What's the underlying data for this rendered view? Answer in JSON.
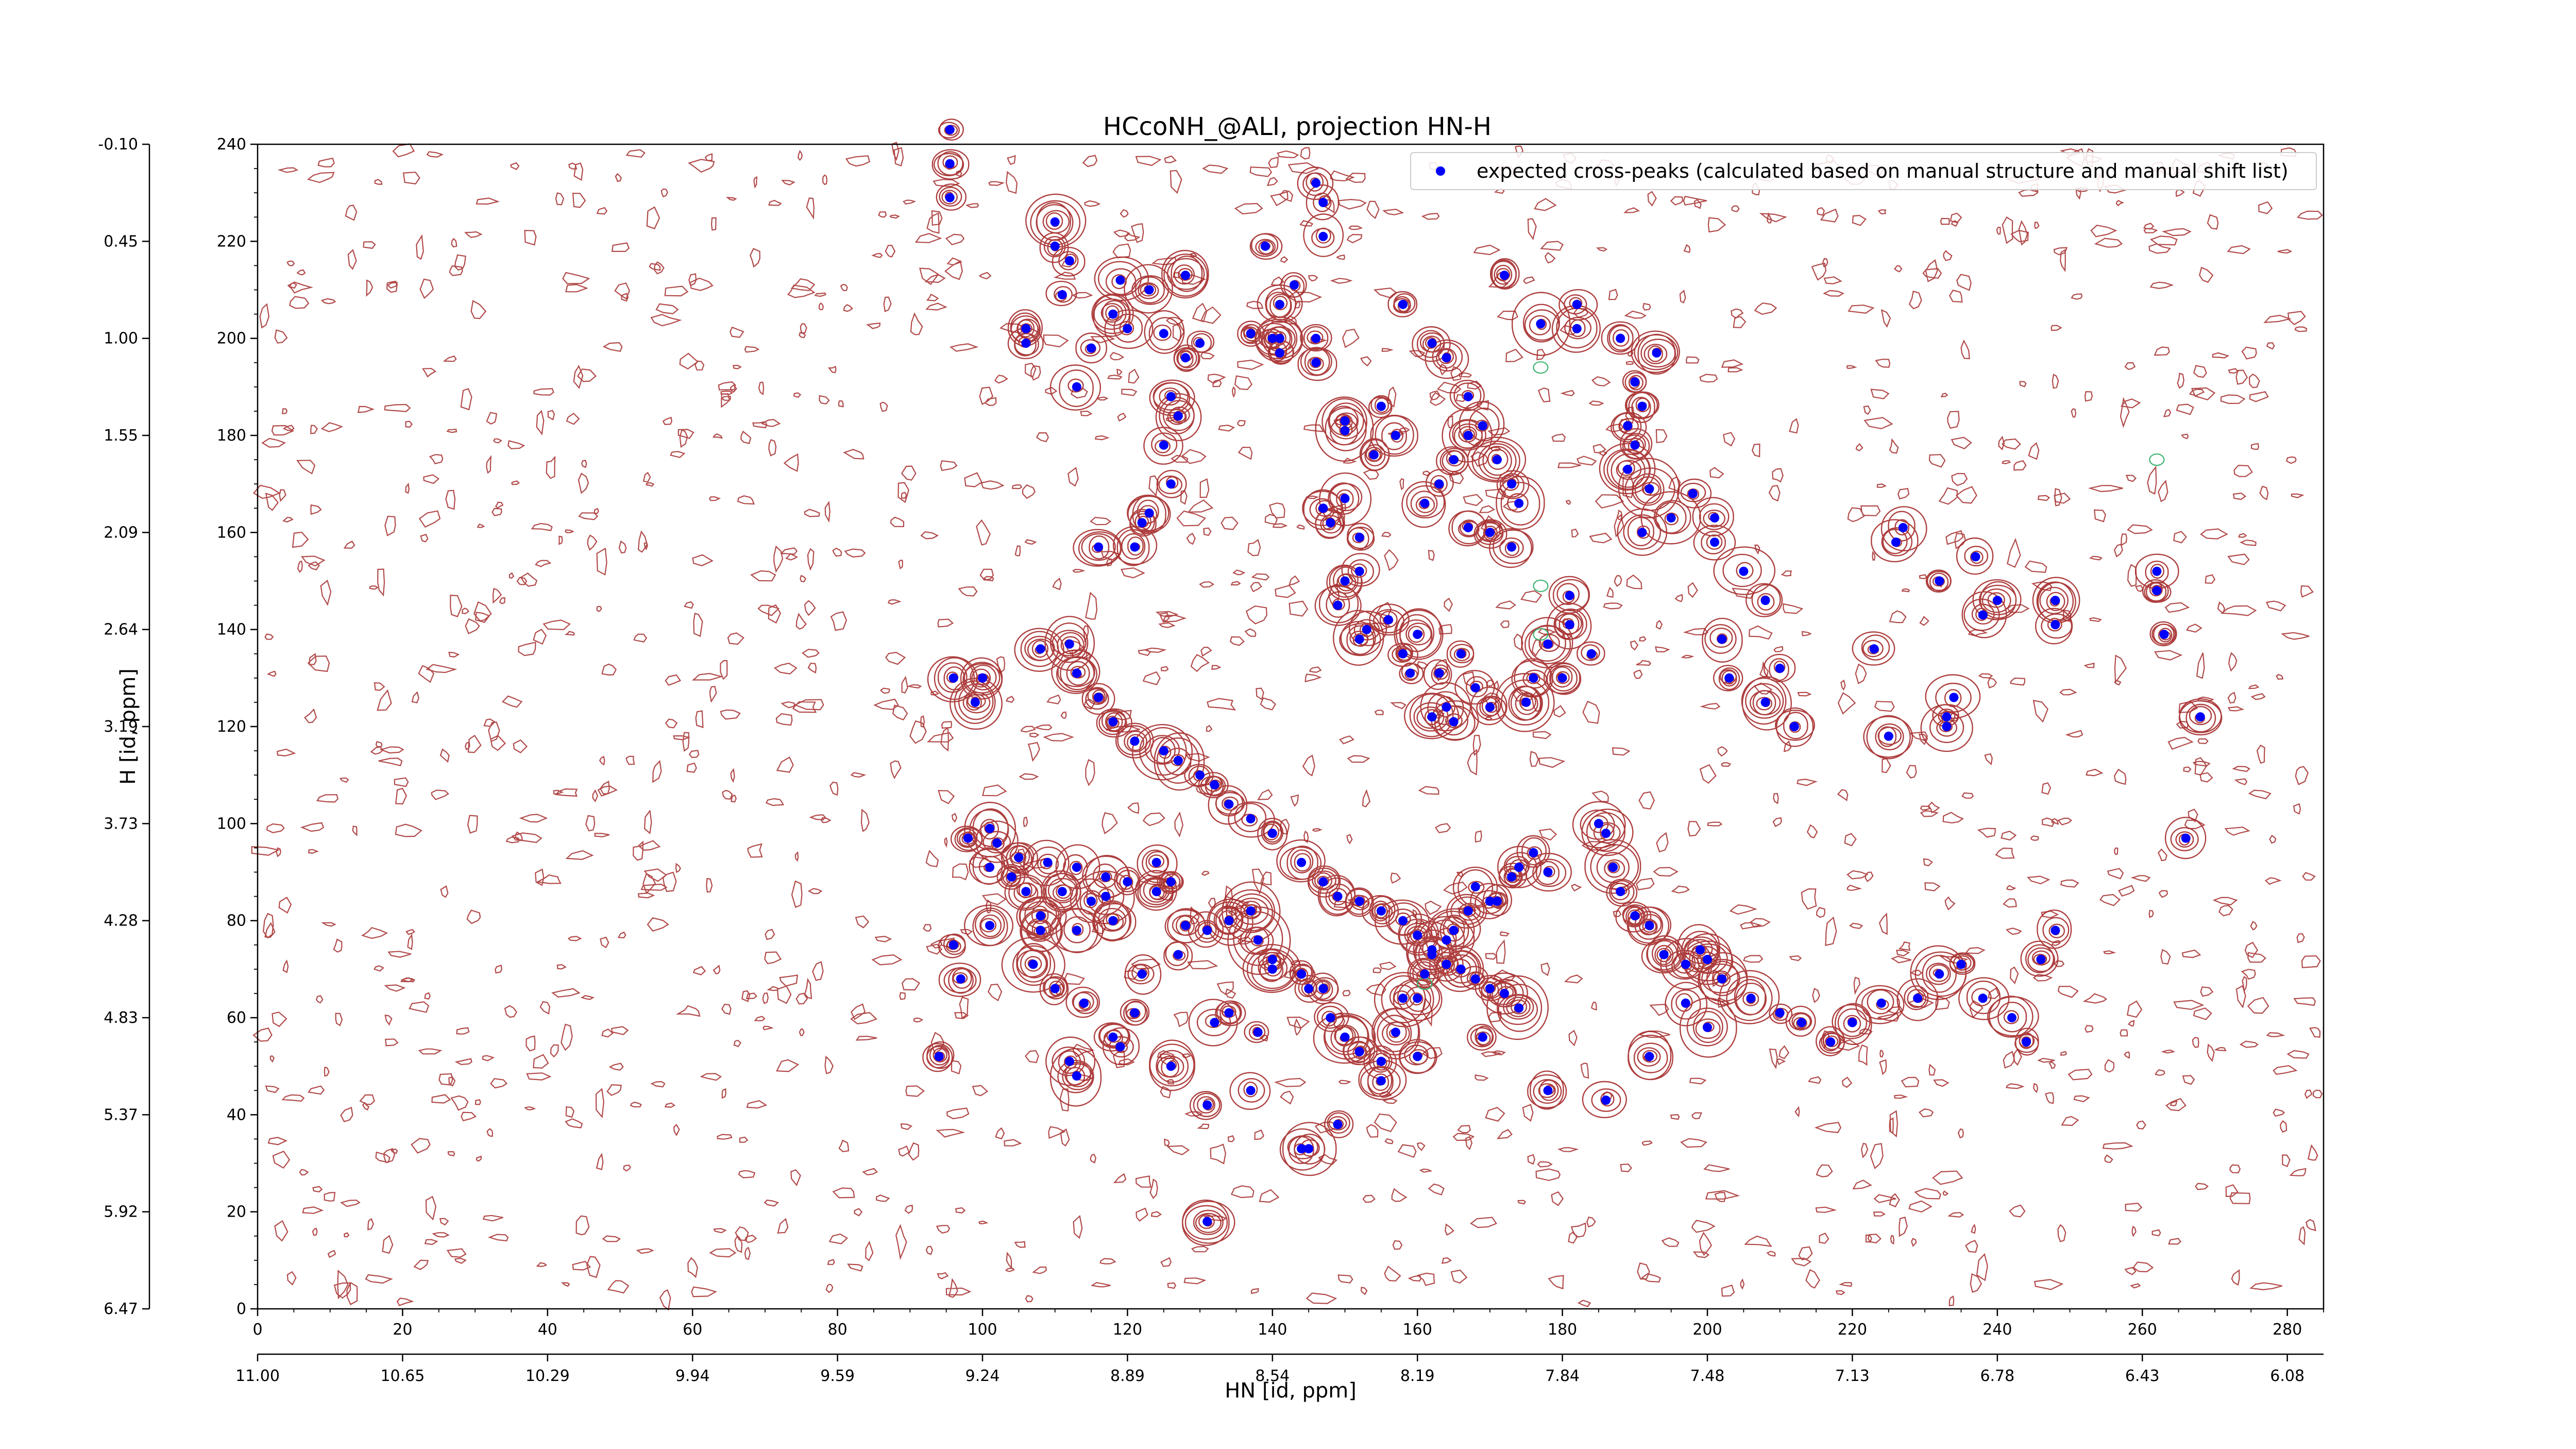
{
  "chart_data": {
    "type": "scatter",
    "title": "HCcoNH_@ALI, projection HN-H",
    "xlabel": "HN [id, ppm]",
    "ylabel": "H [id, ppm]",
    "xlim": [
      0,
      285
    ],
    "ylim": [
      0,
      240
    ],
    "x_ticks": [
      0,
      20,
      40,
      60,
      80,
      100,
      120,
      140,
      160,
      180,
      200,
      220,
      240,
      260,
      280
    ],
    "x_ppm_ticks": [
      "11.00",
      "10.65",
      "10.29",
      "9.94",
      "9.59",
      "9.24",
      "8.89",
      "8.54",
      "8.19",
      "7.84",
      "7.48",
      "7.13",
      "6.78",
      "6.43",
      "6.08"
    ],
    "y_ticks": [
      0,
      20,
      40,
      60,
      80,
      100,
      120,
      140,
      160,
      180,
      200,
      220,
      240
    ],
    "y_ppm_ticks": [
      "6.47",
      "5.92",
      "5.37",
      "4.83",
      "4.28",
      "3.73",
      "3.19",
      "2.64",
      "2.09",
      "1.55",
      "1.00",
      "0.45",
      "-0.10"
    ],
    "grid": false,
    "legend_position": "top-right",
    "colors": {
      "peaks": "#0000ff",
      "contours": "#a52a2a",
      "negative_contours": "#3cb371"
    },
    "series": [
      {
        "name": "expected cross-peaks (calculated based on manual structure and manual shift list)",
        "marker": "filled-circle",
        "points": [
          [
            95.5,
            243
          ],
          [
            95.5,
            236
          ],
          [
            95.5,
            229
          ],
          [
            110,
            224
          ],
          [
            110,
            219
          ],
          [
            112,
            216
          ],
          [
            106,
            202
          ],
          [
            106,
            199
          ],
          [
            113,
            190
          ],
          [
            128,
            196
          ],
          [
            125,
            201
          ],
          [
            130,
            199
          ],
          [
            141,
            200
          ],
          [
            141,
            197
          ],
          [
            146,
            200
          ],
          [
            146,
            195
          ],
          [
            150,
            183
          ],
          [
            150,
            181
          ],
          [
            155,
            186
          ],
          [
            157,
            180
          ],
          [
            154,
            176
          ],
          [
            162,
            199
          ],
          [
            164,
            196
          ],
          [
            167,
            188
          ],
          [
            167,
            180
          ],
          [
            165,
            175
          ],
          [
            169,
            182
          ],
          [
            171,
            175
          ],
          [
            173,
            170
          ],
          [
            174,
            166
          ],
          [
            163,
            170
          ],
          [
            161,
            166
          ],
          [
            167,
            161
          ],
          [
            170,
            160
          ],
          [
            173,
            157
          ],
          [
            177,
            203
          ],
          [
            182,
            202
          ],
          [
            172,
            213
          ],
          [
            182,
            207
          ],
          [
            158,
            207
          ],
          [
            147,
            221
          ],
          [
            143,
            211
          ],
          [
            141,
            207
          ],
          [
            140,
            200
          ],
          [
            137,
            201
          ],
          [
            128,
            213
          ],
          [
            123,
            210
          ],
          [
            119,
            212
          ],
          [
            126,
            188
          ],
          [
            127,
            184
          ],
          [
            125,
            178
          ],
          [
            126,
            170
          ],
          [
            123,
            164
          ],
          [
            116,
            157
          ],
          [
            122,
            162
          ],
          [
            121,
            157
          ],
          [
            115,
            198
          ],
          [
            111,
            209
          ],
          [
            118,
            205
          ],
          [
            120,
            202
          ],
          [
            147,
            228
          ],
          [
            146,
            232
          ],
          [
            139,
            219
          ],
          [
            150,
            167
          ],
          [
            147,
            165
          ],
          [
            148,
            162
          ],
          [
            152,
            159
          ],
          [
            152,
            152
          ],
          [
            150,
            150
          ],
          [
            149,
            145
          ],
          [
            153,
            140
          ],
          [
            152,
            138
          ],
          [
            156,
            142
          ],
          [
            160,
            139
          ],
          [
            158,
            135
          ],
          [
            159,
            131
          ],
          [
            163,
            131
          ],
          [
            164,
            124
          ],
          [
            166,
            135
          ],
          [
            162,
            122
          ],
          [
            165,
            121
          ],
          [
            168,
            128
          ],
          [
            170,
            124
          ],
          [
            175,
            125
          ],
          [
            176,
            130
          ],
          [
            180,
            130
          ],
          [
            178,
            137
          ],
          [
            181,
            141
          ],
          [
            184,
            135
          ],
          [
            181,
            147
          ],
          [
            191,
            160
          ],
          [
            195,
            163
          ],
          [
            192,
            169
          ],
          [
            189,
            173
          ],
          [
            190,
            178
          ],
          [
            189,
            182
          ],
          [
            191,
            186
          ],
          [
            190,
            191
          ],
          [
            193,
            197
          ],
          [
            188,
            200
          ],
          [
            198,
            168
          ],
          [
            201,
            163
          ],
          [
            201,
            158
          ],
          [
            205,
            152
          ],
          [
            208,
            146
          ],
          [
            202,
            138
          ],
          [
            203,
            130
          ],
          [
            210,
            132
          ],
          [
            208,
            125
          ],
          [
            212,
            120
          ],
          [
            225,
            118
          ],
          [
            233,
            122
          ],
          [
            233,
            120
          ],
          [
            234,
            126
          ],
          [
            223,
            136
          ],
          [
            226,
            158
          ],
          [
            227,
            161
          ],
          [
            232,
            150
          ],
          [
            237,
            155
          ],
          [
            240,
            146
          ],
          [
            238,
            143
          ],
          [
            248,
            146
          ],
          [
            248,
            141
          ],
          [
            263,
            139
          ],
          [
            262,
            148
          ],
          [
            262,
            152
          ],
          [
            268,
            122
          ],
          [
            266,
            97
          ],
          [
            101,
            99
          ],
          [
            101,
            91
          ],
          [
            104,
            89
          ],
          [
            106,
            86
          ],
          [
            108,
            81
          ],
          [
            108,
            78
          ],
          [
            111,
            86
          ],
          [
            113,
            78
          ],
          [
            115,
            84
          ],
          [
            118,
            80
          ],
          [
            117,
            85
          ],
          [
            124,
            92
          ],
          [
            126,
            88
          ],
          [
            128,
            79
          ],
          [
            131,
            78
          ],
          [
            134,
            80
          ],
          [
            137,
            82
          ],
          [
            138,
            76
          ],
          [
            140,
            72
          ],
          [
            140,
            70
          ],
          [
            144,
            69
          ],
          [
            145,
            66
          ],
          [
            147,
            66
          ],
          [
            148,
            60
          ],
          [
            150,
            56
          ],
          [
            152,
            53
          ],
          [
            155,
            51
          ],
          [
            157,
            57
          ],
          [
            158,
            64
          ],
          [
            160,
            64
          ],
          [
            161,
            69
          ],
          [
            162,
            73
          ],
          [
            164,
            76
          ],
          [
            165,
            78
          ],
          [
            167,
            82
          ],
          [
            168,
            87
          ],
          [
            170,
            84
          ],
          [
            171,
            84
          ],
          [
            173,
            89
          ],
          [
            174,
            91
          ],
          [
            176,
            94
          ],
          [
            178,
            90
          ],
          [
            185,
            100
          ],
          [
            186,
            98
          ],
          [
            187,
            91
          ],
          [
            188,
            86
          ],
          [
            190,
            81
          ],
          [
            192,
            79
          ],
          [
            194,
            73
          ],
          [
            197,
            71
          ],
          [
            199,
            74
          ],
          [
            200,
            72
          ],
          [
            202,
            68
          ],
          [
            206,
            64
          ],
          [
            210,
            61
          ],
          [
            213,
            59
          ],
          [
            217,
            55
          ],
          [
            220,
            59
          ],
          [
            224,
            63
          ],
          [
            229,
            64
          ],
          [
            232,
            69
          ],
          [
            235,
            71
          ],
          [
            238,
            64
          ],
          [
            242,
            60
          ],
          [
            244,
            55
          ],
          [
            246,
            72
          ],
          [
            248,
            78
          ],
          [
            107,
            71
          ],
          [
            110,
            66
          ],
          [
            114,
            63
          ],
          [
            119,
            54
          ],
          [
            126,
            50
          ],
          [
            131,
            42
          ],
          [
            137,
            45
          ],
          [
            144,
            33
          ],
          [
            149,
            38
          ],
          [
            155,
            47
          ],
          [
            160,
            52
          ],
          [
            169,
            56
          ],
          [
            178,
            45
          ],
          [
            186,
            43
          ],
          [
            192,
            52
          ],
          [
            197,
            63
          ],
          [
            200,
            58
          ],
          [
            94,
            52
          ],
          [
            97,
            68
          ],
          [
            96,
            75
          ],
          [
            101,
            79
          ],
          [
            112,
            51
          ],
          [
            113,
            48
          ],
          [
            118,
            56
          ],
          [
            121,
            61
          ],
          [
            122,
            69
          ],
          [
            127,
            73
          ],
          [
            132,
            59
          ],
          [
            134,
            61
          ],
          [
            138,
            57
          ],
          [
            131,
            18
          ],
          [
            145,
            33
          ],
          [
            96,
            130
          ],
          [
            100,
            130
          ],
          [
            99,
            125
          ],
          [
            108,
            136
          ],
          [
            112,
            137
          ],
          [
            113,
            131
          ],
          [
            116,
            126
          ],
          [
            118,
            121
          ],
          [
            121,
            117
          ],
          [
            125,
            115
          ],
          [
            127,
            113
          ],
          [
            130,
            110
          ],
          [
            132,
            108
          ],
          [
            134,
            104
          ],
          [
            137,
            101
          ],
          [
            140,
            98
          ],
          [
            144,
            92
          ],
          [
            147,
            88
          ],
          [
            149,
            85
          ],
          [
            152,
            84
          ],
          [
            155,
            82
          ],
          [
            158,
            80
          ],
          [
            160,
            77
          ],
          [
            162,
            74
          ],
          [
            164,
            71
          ],
          [
            166,
            70
          ],
          [
            168,
            68
          ],
          [
            170,
            66
          ],
          [
            172,
            65
          ],
          [
            174,
            62
          ],
          [
            98,
            97
          ],
          [
            102,
            96
          ],
          [
            105,
            93
          ],
          [
            109,
            92
          ],
          [
            113,
            91
          ],
          [
            117,
            89
          ],
          [
            120,
            88
          ],
          [
            124,
            86
          ]
        ]
      }
    ]
  }
}
